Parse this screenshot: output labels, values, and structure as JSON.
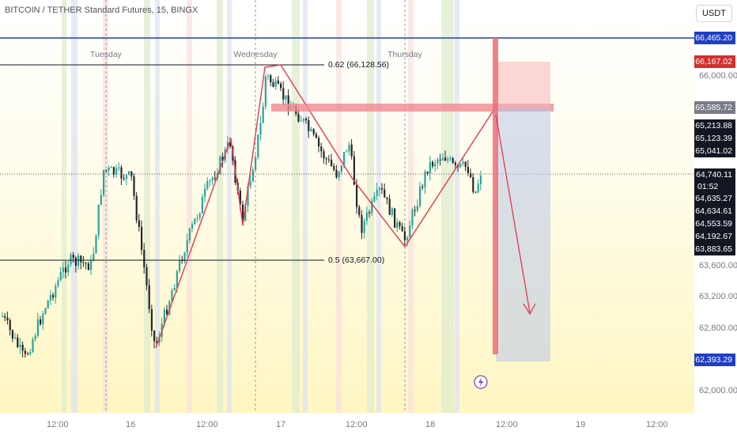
{
  "header": {
    "title": "BITCOIN / TETHER Standard Futures, 15, BINGX",
    "currency_button": "USDT"
  },
  "day_labels": [
    "Tuesday",
    "Wednesday",
    "Thursday"
  ],
  "fib_labels": {
    "upper": "0.62 (66,128.56)",
    "lower": "0.5 (63,667.00)"
  },
  "price_axis": {
    "ticks": [
      "66,000.00",
      "63,600.00",
      "63,200.00",
      "62,800.00",
      "62,000.00"
    ]
  },
  "price_tags": [
    {
      "text": "66,465.20",
      "kind": "blue-line",
      "color": "#1f3fc4"
    },
    {
      "text": "66,167.02",
      "kind": "stop",
      "color": "#d32f2f"
    },
    {
      "text": "65,585.72",
      "kind": "entry",
      "color": "#7a7d85"
    },
    {
      "text": "65,213.88",
      "kind": "info",
      "color": "#131722"
    },
    {
      "text": "65,123.39",
      "kind": "info",
      "color": "#131722"
    },
    {
      "text": "65,041.02",
      "kind": "info",
      "color": "#131722"
    },
    {
      "text": "64,740.11",
      "kind": "last",
      "color": "#131722"
    },
    {
      "text": "01:52",
      "kind": "countdown",
      "color": "#131722"
    },
    {
      "text": "64,635.27",
      "kind": "info",
      "color": "#131722"
    },
    {
      "text": "64,634.61",
      "kind": "info",
      "color": "#131722"
    },
    {
      "text": "64,553.59",
      "kind": "info",
      "color": "#131722"
    },
    {
      "text": "64,192.67",
      "kind": "info",
      "color": "#131722"
    },
    {
      "text": "63,883.65",
      "kind": "info",
      "color": "#131722"
    },
    {
      "text": "62,393.29",
      "kind": "target",
      "color": "#1f3fc4"
    }
  ],
  "time_axis": {
    "ticks": [
      "12:00",
      "16",
      "12:00",
      "17",
      "12:00",
      "18",
      "12:00",
      "19",
      "12:00"
    ]
  },
  "colors": {
    "bull": "#26a69a",
    "bear": "#26262b",
    "pattern": "#e53950",
    "resistance": "#ef8a90",
    "stop_zone": "#f8b4b8",
    "target_zone": "#b9c6e6",
    "blue_line": "#1f3fc4"
  },
  "icons": {
    "flash": "lightning-bolt-icon"
  }
}
